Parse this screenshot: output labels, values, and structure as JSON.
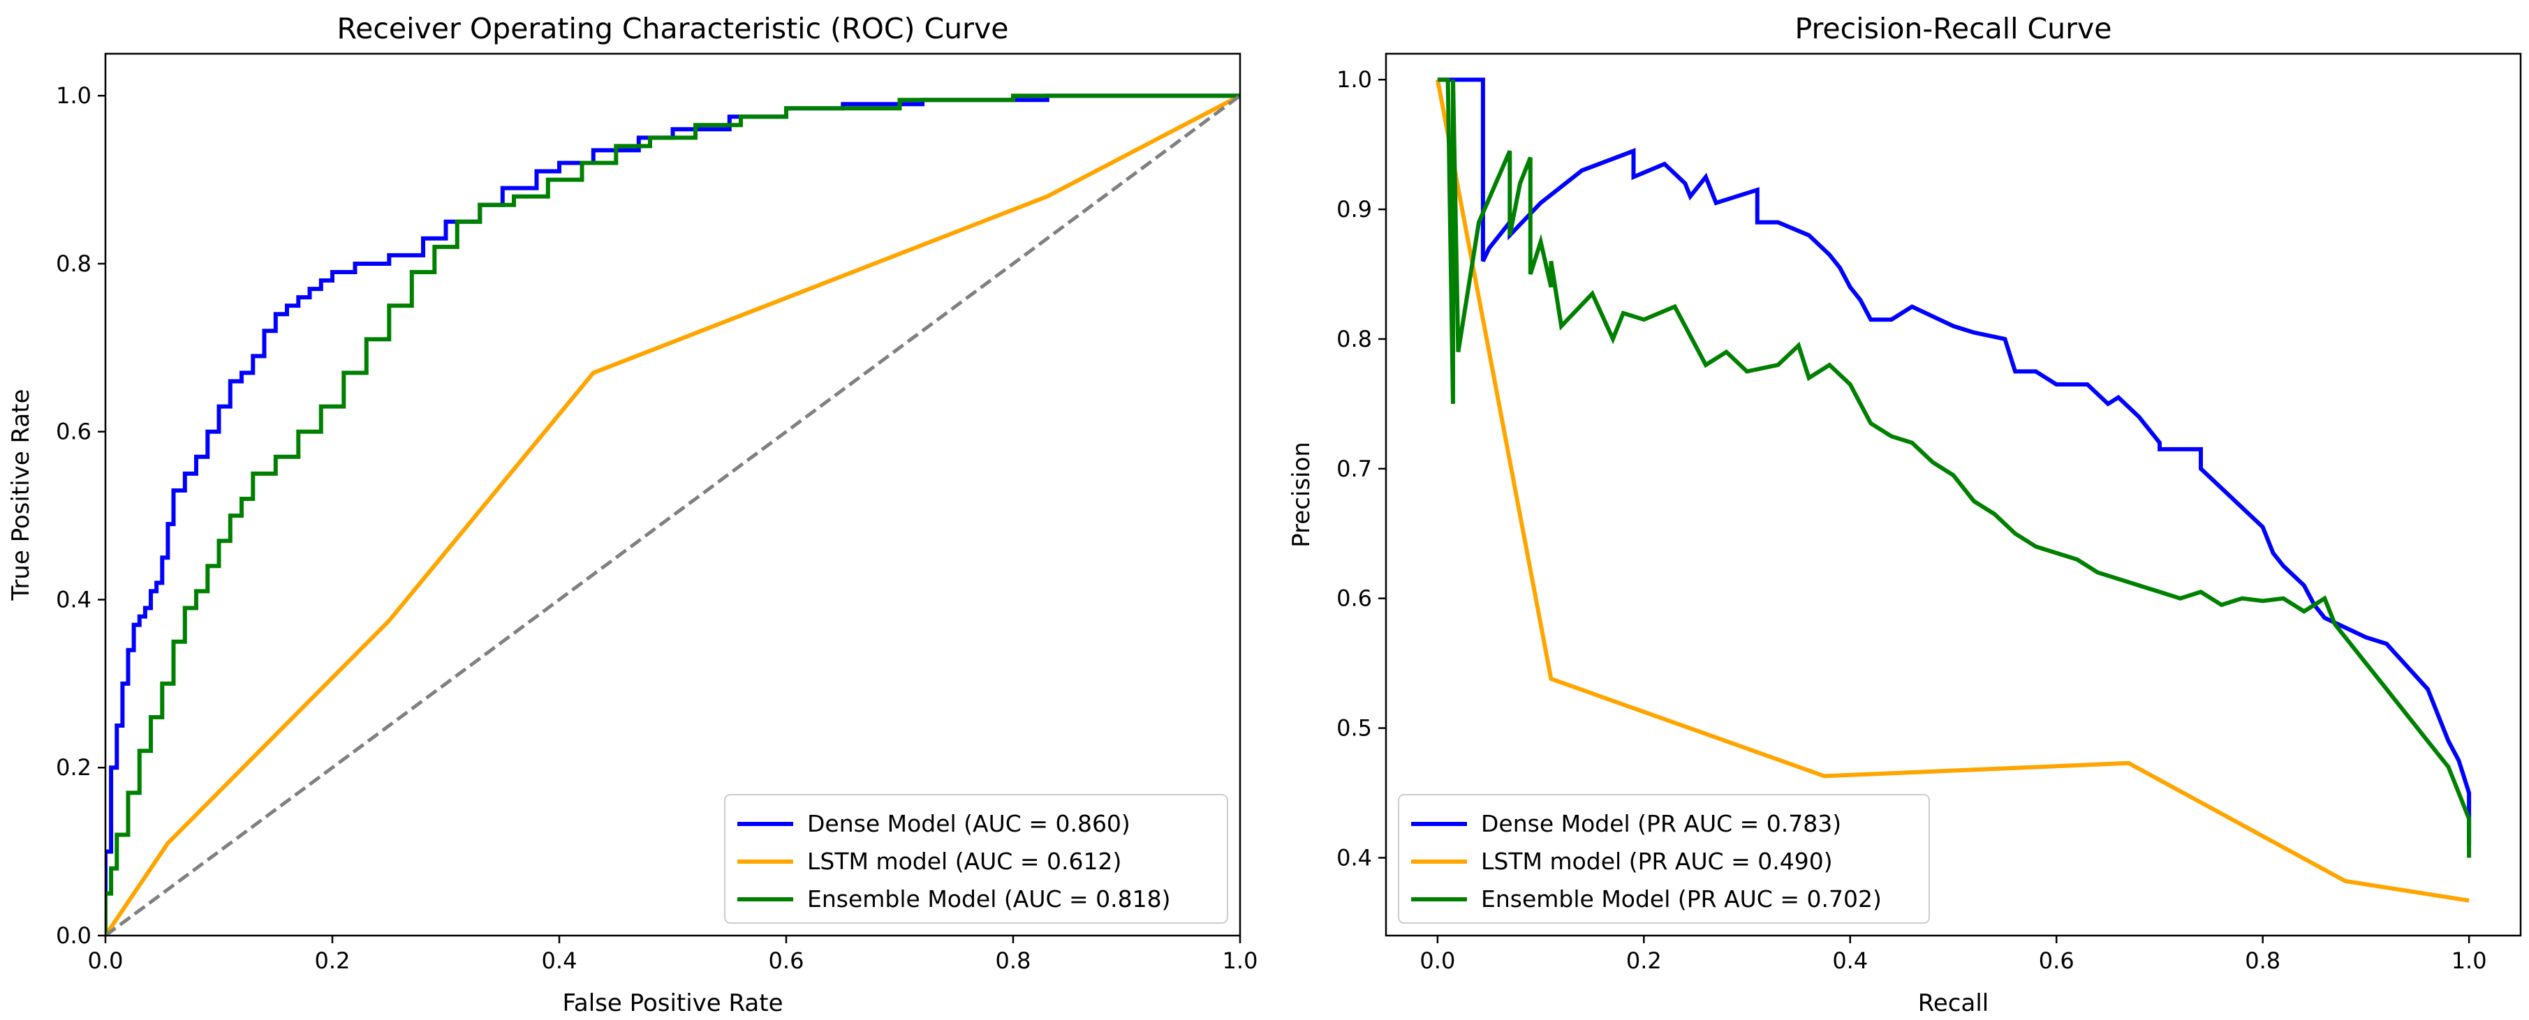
{
  "chart_data": [
    {
      "type": "line",
      "title": "Receiver Operating Characteristic (ROC) Curve",
      "xlabel": "False Positive Rate",
      "ylabel": "True Positive Rate",
      "xlim": [
        0,
        1
      ],
      "ylim": [
        0,
        1.05
      ],
      "xticks": [
        0.0,
        0.2,
        0.4,
        0.6,
        0.8,
        1.0
      ],
      "yticks": [
        0.0,
        0.2,
        0.4,
        0.6,
        0.8,
        1.0
      ],
      "tick_labels_x": [
        "0.0",
        "0.2",
        "0.4",
        "0.6",
        "0.8",
        "1.0"
      ],
      "tick_labels_y": [
        "0.0",
        "0.2",
        "0.4",
        "0.6",
        "0.8",
        "1.0"
      ],
      "legend_position": "lower-right",
      "grid": false,
      "series": [
        {
          "name": "Dense Model (AUC = 0.860)",
          "color": "#0000ff",
          "step": true,
          "x": [
            0,
            0,
            0.005,
            0.005,
            0.01,
            0.01,
            0.015,
            0.015,
            0.02,
            0.02,
            0.025,
            0.025,
            0.03,
            0.03,
            0.035,
            0.035,
            0.04,
            0.04,
            0.045,
            0.045,
            0.05,
            0.05,
            0.055,
            0.055,
            0.06,
            0.06,
            0.07,
            0.07,
            0.08,
            0.08,
            0.09,
            0.09,
            0.1,
            0.1,
            0.11,
            0.11,
            0.12,
            0.12,
            0.13,
            0.13,
            0.14,
            0.14,
            0.15,
            0.15,
            0.16,
            0.16,
            0.17,
            0.17,
            0.18,
            0.18,
            0.19,
            0.19,
            0.2,
            0.2,
            0.22,
            0.22,
            0.25,
            0.25,
            0.28,
            0.28,
            0.3,
            0.3,
            0.33,
            0.33,
            0.35,
            0.35,
            0.38,
            0.38,
            0.4,
            0.4,
            0.43,
            0.43,
            0.47,
            0.47,
            0.5,
            0.5,
            0.55,
            0.55,
            0.6,
            0.6,
            0.65,
            0.65,
            0.72,
            0.72,
            0.83,
            0.83,
            1.0
          ],
          "y": [
            0,
            0.1,
            0.1,
            0.2,
            0.2,
            0.25,
            0.25,
            0.3,
            0.3,
            0.34,
            0.34,
            0.37,
            0.37,
            0.38,
            0.38,
            0.39,
            0.39,
            0.41,
            0.41,
            0.42,
            0.42,
            0.45,
            0.45,
            0.49,
            0.49,
            0.53,
            0.53,
            0.55,
            0.55,
            0.57,
            0.57,
            0.6,
            0.6,
            0.63,
            0.63,
            0.66,
            0.66,
            0.67,
            0.67,
            0.69,
            0.69,
            0.72,
            0.72,
            0.74,
            0.74,
            0.75,
            0.75,
            0.76,
            0.76,
            0.77,
            0.77,
            0.78,
            0.78,
            0.79,
            0.79,
            0.8,
            0.8,
            0.81,
            0.81,
            0.83,
            0.83,
            0.85,
            0.85,
            0.87,
            0.87,
            0.89,
            0.89,
            0.91,
            0.91,
            0.92,
            0.92,
            0.935,
            0.935,
            0.95,
            0.95,
            0.96,
            0.96,
            0.975,
            0.975,
            0.985,
            0.985,
            0.99,
            0.99,
            0.995,
            0.995,
            1.0,
            1.0
          ]
        },
        {
          "name": "LSTM model (AUC = 0.612)",
          "color": "#ffa500",
          "step": false,
          "x": [
            0,
            0.055,
            0.25,
            0.43,
            0.83,
            1.0
          ],
          "y": [
            0,
            0.11,
            0.375,
            0.67,
            0.88,
            1.0
          ]
        },
        {
          "name": "Ensemble Model (AUC = 0.818)",
          "color": "#008000",
          "step": true,
          "x": [
            0,
            0,
            0.005,
            0.005,
            0.01,
            0.01,
            0.02,
            0.02,
            0.03,
            0.03,
            0.04,
            0.04,
            0.05,
            0.05,
            0.06,
            0.06,
            0.07,
            0.07,
            0.08,
            0.08,
            0.09,
            0.09,
            0.1,
            0.1,
            0.11,
            0.11,
            0.12,
            0.12,
            0.13,
            0.13,
            0.15,
            0.15,
            0.17,
            0.17,
            0.19,
            0.19,
            0.21,
            0.21,
            0.23,
            0.23,
            0.25,
            0.25,
            0.27,
            0.27,
            0.29,
            0.29,
            0.31,
            0.31,
            0.33,
            0.33,
            0.36,
            0.36,
            0.39,
            0.39,
            0.42,
            0.42,
            0.45,
            0.45,
            0.48,
            0.48,
            0.52,
            0.52,
            0.56,
            0.56,
            0.6,
            0.6,
            0.7,
            0.7,
            0.8,
            0.8,
            1.0
          ],
          "y": [
            0,
            0.05,
            0.05,
            0.08,
            0.08,
            0.12,
            0.12,
            0.17,
            0.17,
            0.22,
            0.22,
            0.26,
            0.26,
            0.3,
            0.3,
            0.35,
            0.35,
            0.39,
            0.39,
            0.41,
            0.41,
            0.44,
            0.44,
            0.47,
            0.47,
            0.5,
            0.5,
            0.52,
            0.52,
            0.55,
            0.55,
            0.57,
            0.57,
            0.6,
            0.6,
            0.63,
            0.63,
            0.67,
            0.67,
            0.71,
            0.71,
            0.75,
            0.75,
            0.79,
            0.79,
            0.82,
            0.82,
            0.85,
            0.85,
            0.87,
            0.87,
            0.88,
            0.88,
            0.9,
            0.9,
            0.92,
            0.92,
            0.94,
            0.94,
            0.95,
            0.95,
            0.965,
            0.965,
            0.975,
            0.975,
            0.985,
            0.985,
            0.995,
            0.995,
            1.0,
            1.0
          ]
        },
        {
          "name": "chance",
          "color": "#808080",
          "dashed": true,
          "in_legend": false,
          "x": [
            0,
            1
          ],
          "y": [
            0,
            1
          ]
        }
      ]
    },
    {
      "type": "line",
      "title": "Precision-Recall Curve",
      "xlabel": "Recall",
      "ylabel": "Precision",
      "xlim": [
        -0.05,
        1.05
      ],
      "ylim": [
        0.34,
        1.02
      ],
      "xticks": [
        0.0,
        0.2,
        0.4,
        0.6,
        0.8,
        1.0
      ],
      "yticks": [
        0.4,
        0.5,
        0.6,
        0.7,
        0.8,
        0.9,
        1.0
      ],
      "tick_labels_x": [
        "0.0",
        "0.2",
        "0.4",
        "0.6",
        "0.8",
        "1.0"
      ],
      "tick_labels_y": [
        "0.4",
        "0.5",
        "0.6",
        "0.7",
        "0.8",
        "0.9",
        "1.0"
      ],
      "legend_position": "lower-left",
      "grid": false,
      "series": [
        {
          "name": "Dense Model (PR AUC = 0.783)",
          "color": "#0000ff",
          "step": false,
          "x": [
            0.0,
            0.044,
            0.044,
            0.05,
            0.07,
            0.07,
            0.1,
            0.14,
            0.19,
            0.19,
            0.22,
            0.24,
            0.245,
            0.26,
            0.27,
            0.31,
            0.31,
            0.33,
            0.36,
            0.38,
            0.39,
            0.4,
            0.41,
            0.42,
            0.44,
            0.46,
            0.5,
            0.52,
            0.55,
            0.56,
            0.58,
            0.6,
            0.63,
            0.65,
            0.66,
            0.68,
            0.7,
            0.7,
            0.74,
            0.74,
            0.76,
            0.78,
            0.8,
            0.81,
            0.82,
            0.84,
            0.85,
            0.86,
            0.9,
            0.92,
            0.96,
            0.98,
            0.99,
            1.0,
            1.0
          ],
          "y": [
            1.0,
            1.0,
            0.86,
            0.87,
            0.89,
            0.88,
            0.905,
            0.93,
            0.945,
            0.925,
            0.935,
            0.92,
            0.91,
            0.925,
            0.905,
            0.915,
            0.89,
            0.89,
            0.88,
            0.865,
            0.855,
            0.84,
            0.83,
            0.815,
            0.815,
            0.825,
            0.81,
            0.805,
            0.8,
            0.775,
            0.775,
            0.765,
            0.765,
            0.75,
            0.755,
            0.74,
            0.72,
            0.715,
            0.715,
            0.7,
            0.685,
            0.67,
            0.655,
            0.635,
            0.625,
            0.61,
            0.595,
            0.585,
            0.57,
            0.565,
            0.53,
            0.49,
            0.475,
            0.45,
            0.41
          ]
        },
        {
          "name": "LSTM model (PR AUC = 0.490)",
          "color": "#ffa500",
          "step": false,
          "x": [
            0.0,
            0.11,
            0.375,
            0.67,
            0.88,
            1.0
          ],
          "y": [
            1.0,
            0.538,
            0.463,
            0.473,
            0.382,
            0.367
          ]
        },
        {
          "name": "Ensemble Model (PR AUC = 0.702)",
          "color": "#008000",
          "step": false,
          "x": [
            0.0,
            0.01,
            0.015,
            0.015,
            0.02,
            0.04,
            0.07,
            0.07,
            0.08,
            0.09,
            0.09,
            0.1,
            0.11,
            0.11,
            0.12,
            0.15,
            0.17,
            0.18,
            0.2,
            0.23,
            0.26,
            0.28,
            0.3,
            0.33,
            0.35,
            0.36,
            0.38,
            0.4,
            0.42,
            0.44,
            0.46,
            0.48,
            0.5,
            0.52,
            0.54,
            0.56,
            0.58,
            0.6,
            0.62,
            0.64,
            0.66,
            0.68,
            0.7,
            0.72,
            0.74,
            0.76,
            0.78,
            0.8,
            0.82,
            0.84,
            0.86,
            0.87,
            0.9,
            0.92,
            0.94,
            0.96,
            0.98,
            0.99,
            1.0,
            1.0
          ],
          "y": [
            1.0,
            1.0,
            0.75,
            1.0,
            0.79,
            0.89,
            0.945,
            0.88,
            0.92,
            0.94,
            0.85,
            0.875,
            0.84,
            0.86,
            0.81,
            0.835,
            0.8,
            0.82,
            0.815,
            0.825,
            0.78,
            0.79,
            0.775,
            0.78,
            0.795,
            0.77,
            0.78,
            0.765,
            0.735,
            0.725,
            0.72,
            0.705,
            0.695,
            0.675,
            0.665,
            0.65,
            0.64,
            0.635,
            0.63,
            0.62,
            0.615,
            0.61,
            0.605,
            0.6,
            0.605,
            0.595,
            0.6,
            0.598,
            0.6,
            0.59,
            0.6,
            0.58,
            0.55,
            0.53,
            0.51,
            0.49,
            0.47,
            0.45,
            0.43,
            0.4
          ]
        }
      ]
    }
  ]
}
